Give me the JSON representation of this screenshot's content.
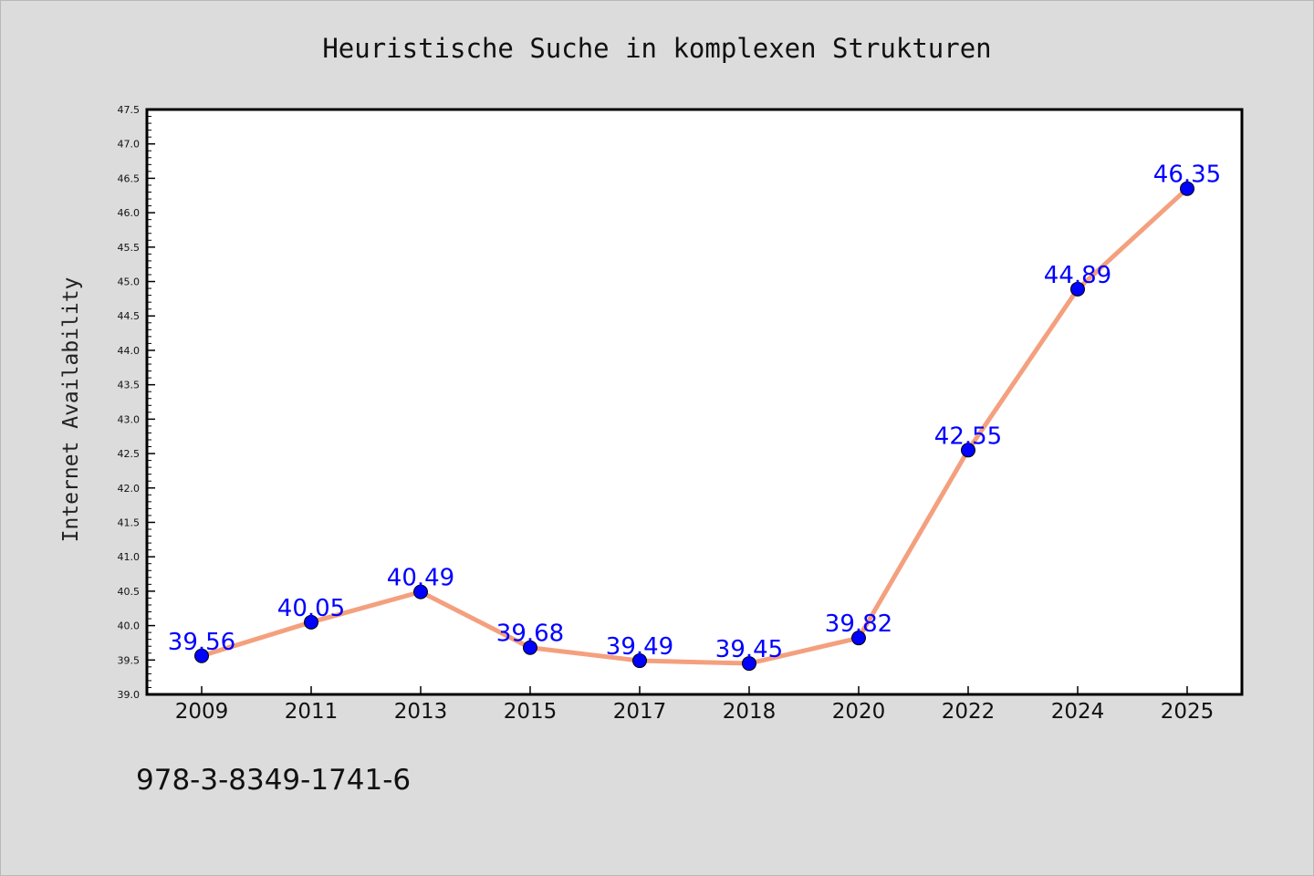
{
  "colors": {
    "background": "#dcdcdc",
    "plot_background": "#ffffff",
    "line": "#f4a07e",
    "marker": "#0000ff",
    "label": "#0000ff",
    "axis": "#000000"
  },
  "footer": {
    "isbn": "978-3-8349-1741-6"
  },
  "chart_data": {
    "type": "line",
    "title": "Heuristische Suche in komplexen Strukturen",
    "xlabel": "",
    "ylabel": "Internet Availability",
    "categories": [
      "2009",
      "2011",
      "2013",
      "2015",
      "2017",
      "2018",
      "2020",
      "2022",
      "2024",
      "2025"
    ],
    "series": [
      {
        "values": [
          39.56,
          40.05,
          40.49,
          39.68,
          39.49,
          39.45,
          39.82,
          42.55,
          44.89,
          46.35
        ],
        "labels": [
          "39.56",
          "40.05",
          "40.49",
          "39.68",
          "39.49",
          "39.45",
          "39.82",
          "42.55",
          "44.89",
          "46.35"
        ]
      }
    ],
    "ylim": [
      39.0,
      47.5
    ],
    "yticks": [
      "39.0",
      "39.5",
      "40.0",
      "40.5",
      "41.0",
      "41.5",
      "42.0",
      "42.5",
      "43.0",
      "43.5",
      "44.0",
      "44.5",
      "45.0",
      "45.5",
      "46.0",
      "46.5",
      "47.0",
      "47.5"
    ],
    "grid": false,
    "legend": "none"
  }
}
